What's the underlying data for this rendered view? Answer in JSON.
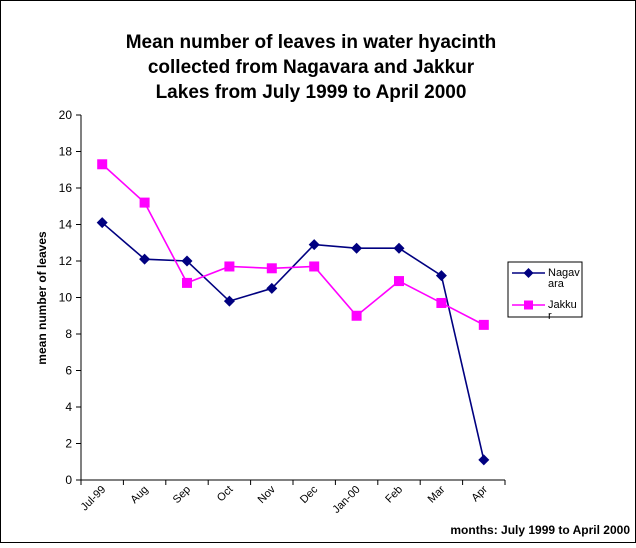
{
  "chart_data": {
    "type": "line",
    "title": [
      "Mean number of leaves in water hyacinth",
      "collected from Nagavara and Jakkur",
      "Lakes from July 1999 to  April 2000"
    ],
    "y_label": "mean number of leaves",
    "x_label": "months: July 1999 to April 2000",
    "categories": [
      "Jul-99",
      "Aug",
      "Sep",
      "Oct",
      "Nov",
      "Dec",
      "Jan-00",
      "Feb",
      "Mar",
      "Apr"
    ],
    "series": [
      {
        "name": "Nagavara",
        "color": "#000080",
        "marker": "diamond",
        "values": [
          14.1,
          12.1,
          12.0,
          9.8,
          10.5,
          12.9,
          12.7,
          12.7,
          11.2,
          1.1
        ]
      },
      {
        "name": "Jakkur",
        "color": "#ff00ff",
        "marker": "square",
        "values": [
          17.3,
          15.2,
          10.8,
          11.7,
          11.6,
          11.7,
          9.0,
          10.9,
          9.7,
          8.5
        ]
      }
    ],
    "ylim": [
      0,
      20
    ],
    "yticks": [
      0,
      2,
      4,
      6,
      8,
      10,
      12,
      14,
      16,
      18,
      20
    ],
    "legend": "right"
  }
}
